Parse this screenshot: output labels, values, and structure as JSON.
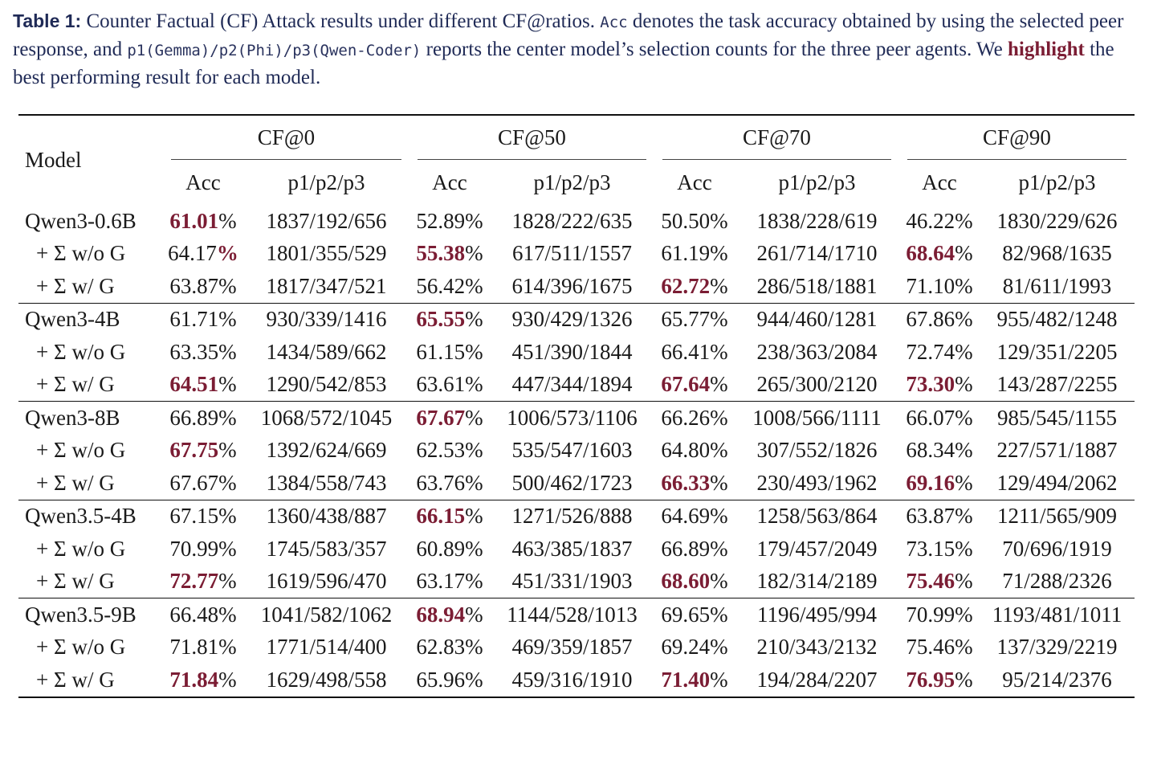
{
  "caption": {
    "label": "Table 1:",
    "t1": " Counter Factual (CF) Attack results under different CF@ratios. ",
    "code_acc": "Acc",
    "t2": " denotes the task accuracy obtained by using the selected peer response, and ",
    "code_p": "p1(Gemma)/p2(Phi)/p3(Qwen-Coder)",
    "t3": " reports the center model’s selection counts for the three peer agents. We ",
    "highlight": "highlight",
    "t4": " the best performing result for each model."
  },
  "header": {
    "model": "Model",
    "groups": [
      "CF@0",
      "CF@50",
      "CF@70",
      "CF@90"
    ],
    "acc": "Acc",
    "sel": "p1/p2/p3"
  },
  "rows": [
    {
      "model": "Qwen3-0.6B",
      "cells": [
        [
          "61.01",
          "%",
          "1837/192/656"
        ],
        [
          "52.89",
          "%",
          "1828/222/635"
        ],
        [
          "50.50",
          "%",
          "1838/228/619"
        ],
        [
          "46.22",
          "%",
          "1830/229/626"
        ]
      ]
    },
    {
      "model": "+ Σ w/o G",
      "cells": [
        [
          "64.17",
          "%",
          "1801/355/529"
        ],
        [
          "55.38",
          "%",
          "617/511/1557"
        ],
        [
          "61.19",
          "%",
          "261/714/1710"
        ],
        [
          "68.64",
          "%",
          "82/968/1635"
        ]
      ]
    },
    {
      "model": "+ Σ w/ G",
      "cells": [
        [
          "63.87",
          "%",
          "1817/347/521"
        ],
        [
          "56.42",
          "%",
          "614/396/1675"
        ],
        [
          "62.72",
          "%",
          "286/518/1881"
        ],
        [
          "71.10",
          "%",
          "81/611/1993"
        ]
      ]
    },
    {
      "model": "Qwen3-4B",
      "cells": [
        [
          "61.71",
          "%",
          "930/339/1416"
        ],
        [
          "65.55",
          "%",
          "930/429/1326"
        ],
        [
          "65.77",
          "%",
          "944/460/1281"
        ],
        [
          "67.86",
          "%",
          "955/482/1248"
        ]
      ]
    },
    {
      "model": "+ Σ w/o G",
      "cells": [
        [
          "63.35",
          "%",
          "1434/589/662"
        ],
        [
          "61.15",
          "%",
          "451/390/1844"
        ],
        [
          "66.41",
          "%",
          "238/363/2084"
        ],
        [
          "72.74",
          "%",
          "129/351/2205"
        ]
      ]
    },
    {
      "model": "+ Σ w/ G",
      "cells": [
        [
          "64.51",
          "%",
          "1290/542/853"
        ],
        [
          "63.61",
          "%",
          "447/344/1894"
        ],
        [
          "67.64",
          "%",
          "265/300/2120"
        ],
        [
          "73.30",
          "%",
          "143/287/2255"
        ]
      ]
    },
    {
      "model": "Qwen3-8B",
      "cells": [
        [
          "66.89",
          "%",
          "1068/572/1045"
        ],
        [
          "67.67",
          "%",
          "1006/573/1106"
        ],
        [
          "66.26",
          "%",
          "1008/566/1111"
        ],
        [
          "66.07",
          "%",
          "985/545/1155"
        ]
      ]
    },
    {
      "model": "+ Σ w/o G",
      "cells": [
        [
          "67.75",
          "%",
          "1392/624/669"
        ],
        [
          "62.53",
          "%",
          "535/547/1603"
        ],
        [
          "64.80",
          "%",
          "307/552/1826"
        ],
        [
          "68.34",
          "%",
          "227/571/1887"
        ]
      ]
    },
    {
      "model": "+ Σ w/ G",
      "cells": [
        [
          "67.67",
          "%",
          "1384/558/743"
        ],
        [
          "63.76",
          "%",
          "500/462/1723"
        ],
        [
          "66.33",
          "%",
          "230/493/1962"
        ],
        [
          "69.16",
          "%",
          "129/494/2062"
        ]
      ]
    },
    {
      "model": "Qwen3.5-4B",
      "cells": [
        [
          "67.15",
          "%",
          "1360/438/887"
        ],
        [
          "66.15",
          "%",
          "1271/526/888"
        ],
        [
          "64.69",
          "%",
          "1258/563/864"
        ],
        [
          "63.87",
          "%",
          "1211/565/909"
        ]
      ]
    },
    {
      "model": "+ Σ w/o G",
      "cells": [
        [
          "70.99",
          "%",
          "1745/583/357"
        ],
        [
          "60.89",
          "%",
          "463/385/1837"
        ],
        [
          "66.89",
          "%",
          "179/457/2049"
        ],
        [
          "73.15",
          "%",
          "70/696/1919"
        ]
      ]
    },
    {
      "model": "+ Σ w/ G",
      "cells": [
        [
          "72.77",
          "%",
          "1619/596/470"
        ],
        [
          "63.17",
          "%",
          "451/331/1903"
        ],
        [
          "68.60",
          "%",
          "182/314/2189"
        ],
        [
          "75.46",
          "%",
          "71/288/2326"
        ]
      ]
    },
    {
      "model": "Qwen3.5-9B",
      "cells": [
        [
          "66.48",
          "%",
          "1041/582/1062"
        ],
        [
          "68.94",
          "%",
          "1144/528/1013"
        ],
        [
          "69.65",
          "%",
          "1196/495/994"
        ],
        [
          "70.99",
          "%",
          "1193/481/1011"
        ]
      ]
    },
    {
      "model": "+ Σ w/o G",
      "cells": [
        [
          "71.81",
          "%",
          "1771/514/400"
        ],
        [
          "62.83",
          "%",
          "469/359/1857"
        ],
        [
          "69.24",
          "%",
          "210/343/2132"
        ],
        [
          "75.46",
          "%",
          "137/329/2219"
        ]
      ]
    },
    {
      "model": "+ Σ w/ G",
      "cells": [
        [
          "71.84",
          "%",
          "1629/498/558"
        ],
        [
          "65.96",
          "%",
          "459/316/1910"
        ],
        [
          "71.40",
          "%",
          "194/284/2207"
        ],
        [
          "76.95",
          "%",
          "95/214/2376"
        ]
      ]
    }
  ],
  "highlight_color": "#7b1d34"
}
